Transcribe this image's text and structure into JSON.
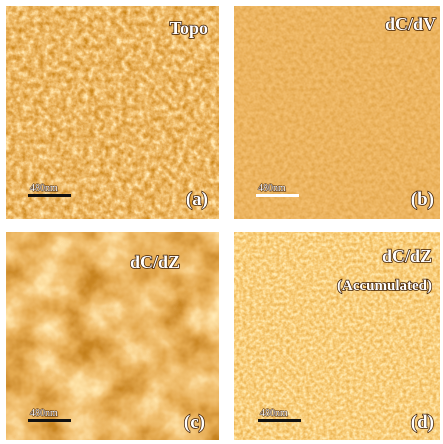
{
  "panels": [
    {
      "title": "Topo",
      "label": "(a)",
      "scale_bar": "480nm"
    },
    {
      "title": "dC/dV",
      "label": "(b)",
      "scale_bar": "480nm"
    },
    {
      "title": "dC/dZ",
      "label": "(c)",
      "scale_bar": "480nm"
    },
    {
      "title": "dC/dZ",
      "subtitle": "(Accumulated)",
      "label": "(d)",
      "scale_bar": "480nm"
    }
  ]
}
